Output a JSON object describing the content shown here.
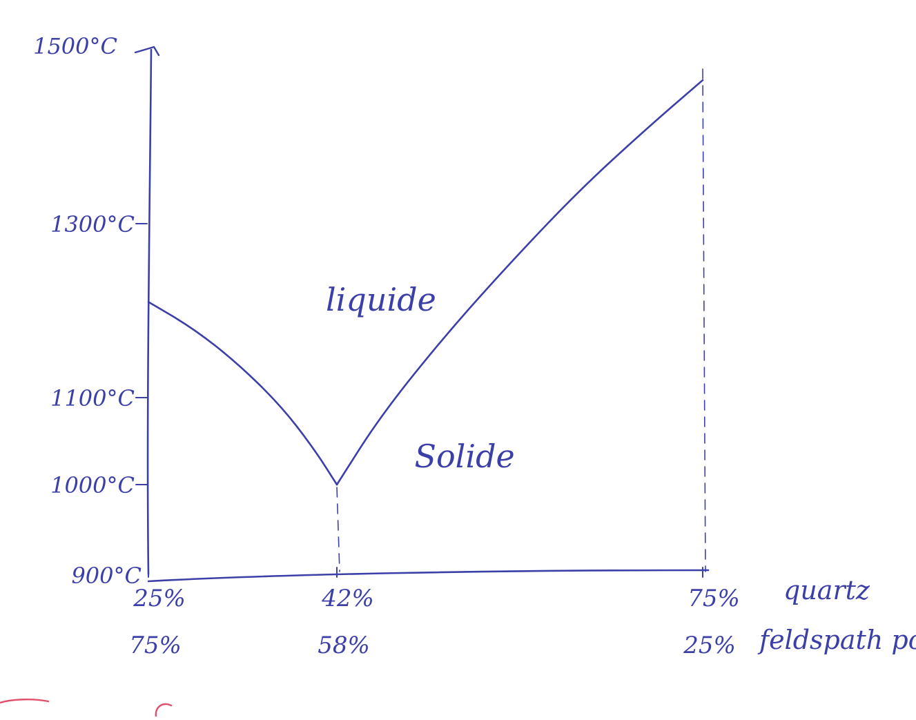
{
  "colors": {
    "ink": "#3b3fa8",
    "red_ink": "#e0506a",
    "paper": "#ffffff"
  },
  "chart_data": {
    "type": "line",
    "y_axis": {
      "ticks": [
        {
          "value": 900,
          "label": "900°C"
        },
        {
          "value": 1000,
          "label": "1000°C"
        },
        {
          "value": 1100,
          "label": "1100°C"
        },
        {
          "value": 1300,
          "label": "1300°C"
        },
        {
          "value": 1500,
          "label": "1500°C"
        }
      ],
      "ylim": [
        900,
        1500
      ]
    },
    "x_axis": {
      "ticks": [
        {
          "value": 25,
          "label_top": "25%",
          "label_bottom": "75%"
        },
        {
          "value": 42,
          "label_top": "42%",
          "label_bottom": "58%"
        },
        {
          "value": 75,
          "label_top": "75%",
          "label_bottom": "25%"
        }
      ],
      "xlim": [
        25,
        75
      ],
      "series_names": [
        "quartz",
        "feldspath potassique"
      ]
    },
    "series": [
      {
        "x": [
          25,
          29,
          33,
          37,
          40,
          42
        ],
        "y": [
          1210,
          1180,
          1140,
          1090,
          1040,
          1000
        ]
      },
      {
        "x": [
          42,
          46,
          52,
          58,
          64,
          70,
          75
        ],
        "y": [
          1000,
          1080,
          1175,
          1260,
          1340,
          1410,
          1465
        ]
      }
    ],
    "vertical_dashed_at": [
      42,
      75
    ],
    "region_labels": [
      {
        "text": "liquide",
        "x": 41,
        "y": 1200
      },
      {
        "text": "Solide",
        "x": 49,
        "y": 1020
      }
    ],
    "grid": false,
    "legend": "none"
  }
}
